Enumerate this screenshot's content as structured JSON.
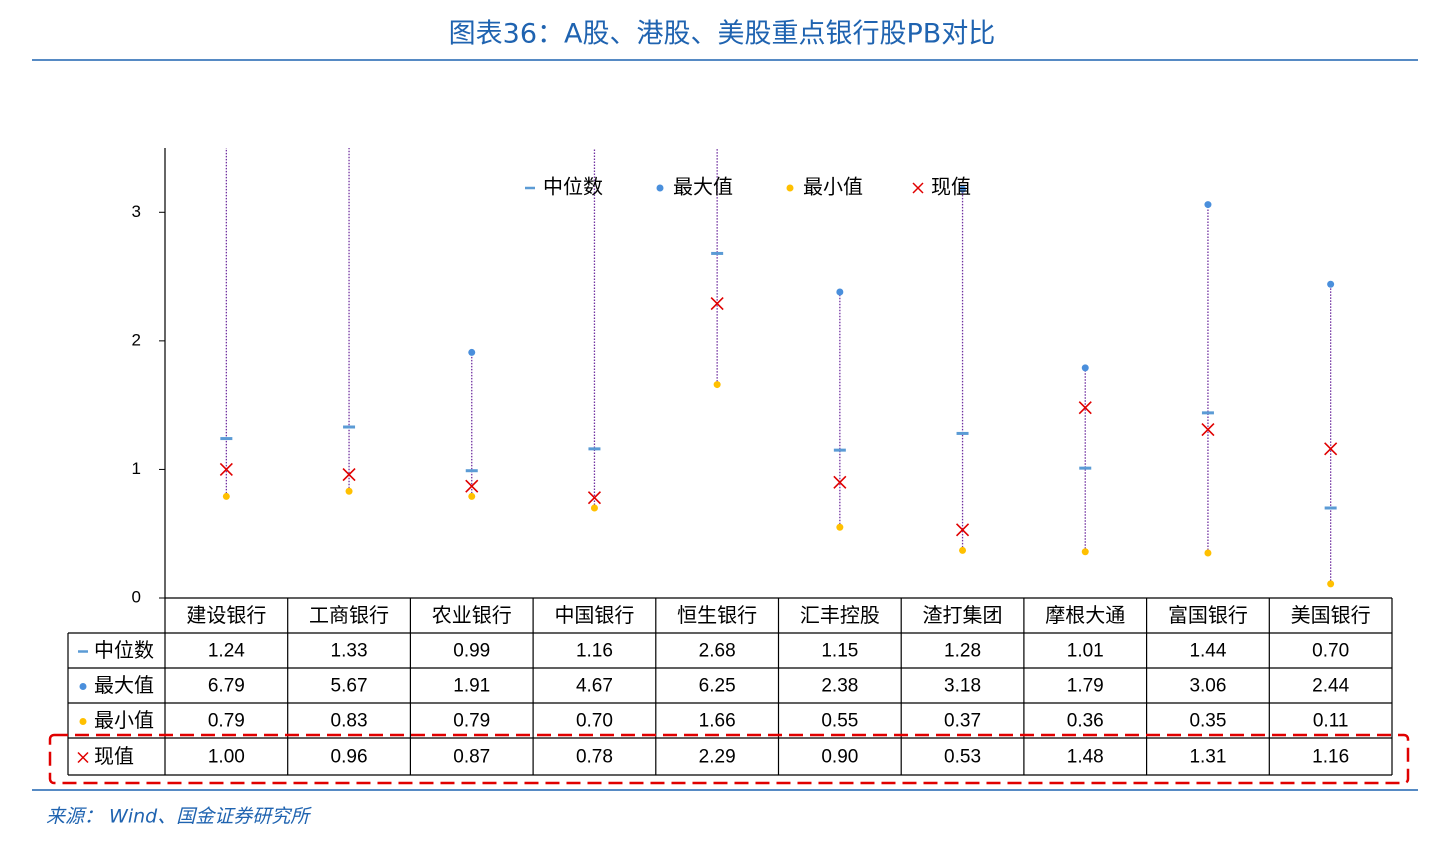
{
  "chart_data": {
    "type": "dot",
    "title": "图表36：A股、港股、美股重点银行股PB对比",
    "source": "来源： Wind、国金证券研究所",
    "categories": [
      "建设银行",
      "工商银行",
      "农业银行",
      "中国银行",
      "恒生银行",
      "汇丰控股",
      "渣打集团",
      "摩根大通",
      "富国银行",
      "美国银行"
    ],
    "ylim": [
      0,
      3.5
    ],
    "yticks": [
      0,
      1,
      2,
      3
    ],
    "range_color": "#7030a0",
    "series": [
      {
        "name": "中位数",
        "marker": "dash",
        "color": "#5b9bd5",
        "values": [
          1.24,
          1.33,
          0.99,
          1.16,
          2.68,
          1.15,
          1.28,
          1.01,
          1.44,
          0.7
        ],
        "value_labels": [
          "1.24",
          "1.33",
          "0.99",
          "1.16",
          "2.68",
          "1.15",
          "1.28",
          "1.01",
          "1.44",
          "0.70"
        ]
      },
      {
        "name": "最大值",
        "marker": "dot",
        "color": "#4a8fdc",
        "values": [
          6.79,
          5.67,
          1.91,
          4.67,
          6.25,
          2.38,
          3.18,
          1.79,
          3.06,
          2.44
        ],
        "value_labels": [
          "6.79",
          "5.67",
          "1.91",
          "4.67",
          "6.25",
          "2.38",
          "3.18",
          "1.79",
          "3.06",
          "2.44"
        ]
      },
      {
        "name": "最小值",
        "marker": "dot",
        "color": "#ffc000",
        "values": [
          0.79,
          0.83,
          0.79,
          0.7,
          1.66,
          0.55,
          0.37,
          0.36,
          0.35,
          0.11
        ],
        "value_labels": [
          "0.79",
          "0.83",
          "0.79",
          "0.70",
          "1.66",
          "0.55",
          "0.37",
          "0.36",
          "0.35",
          "0.11"
        ]
      },
      {
        "name": "现值",
        "marker": "cross",
        "color": "#e00000",
        "values": [
          1.0,
          0.96,
          0.87,
          0.78,
          2.29,
          0.9,
          0.53,
          1.48,
          1.31,
          1.16
        ],
        "value_labels": [
          "1.00",
          "0.96",
          "0.87",
          "0.78",
          "2.29",
          "0.90",
          "0.53",
          "1.48",
          "1.31",
          "1.16"
        ]
      }
    ]
  }
}
